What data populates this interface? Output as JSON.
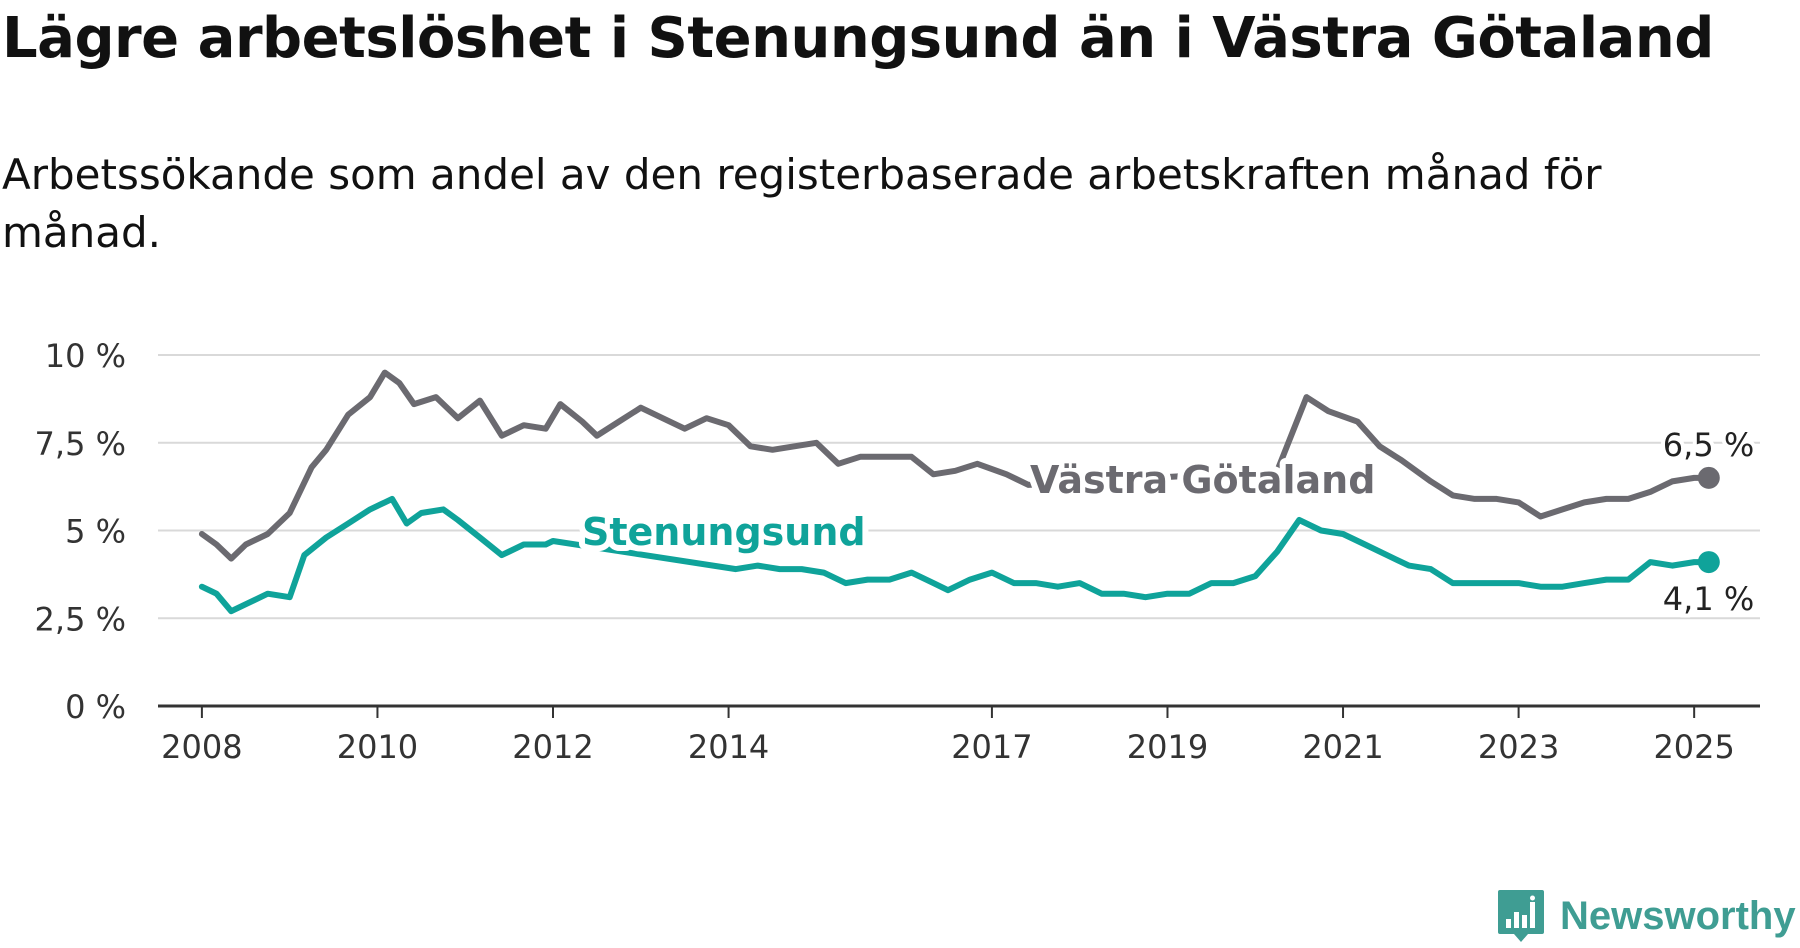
{
  "title": "Lägre arbetslöshet i Stenungsund än i Västra Götaland",
  "subtitle": "Arbetssökande som andel av den registerbaserade arbetskraften månad för månad.",
  "brand": {
    "name": "Newsworthy",
    "color": "#3f9d93"
  },
  "chart_data": {
    "type": "line",
    "y_ticks": [
      "0 %",
      "2,5 %",
      "5 %",
      "7,5 %",
      "10 %"
    ],
    "x_ticks": [
      "2008",
      "2010",
      "2012",
      "2014",
      "2017",
      "2019",
      "2021",
      "2023",
      "2025"
    ],
    "ylim": [
      0,
      10
    ],
    "xlim": [
      "2007-07",
      "2025-10"
    ],
    "grid": true,
    "series": [
      {
        "name": "Västra Götaland",
        "color": "#6b6a70",
        "end_label": "6,5 %",
        "points": [
          [
            "2008-01",
            4.9
          ],
          [
            "2008-03",
            4.6
          ],
          [
            "2008-05",
            4.2
          ],
          [
            "2008-07",
            4.6
          ],
          [
            "2008-10",
            4.9
          ],
          [
            "2009-01",
            5.5
          ],
          [
            "2009-04",
            6.8
          ],
          [
            "2009-06",
            7.3
          ],
          [
            "2009-09",
            8.3
          ],
          [
            "2009-12",
            8.8
          ],
          [
            "2010-02",
            9.5
          ],
          [
            "2010-04",
            9.2
          ],
          [
            "2010-06",
            8.6
          ],
          [
            "2010-09",
            8.8
          ],
          [
            "2010-12",
            8.2
          ],
          [
            "2011-03",
            8.7
          ],
          [
            "2011-06",
            7.7
          ],
          [
            "2011-09",
            8.0
          ],
          [
            "2011-12",
            7.9
          ],
          [
            "2012-02",
            8.6
          ],
          [
            "2012-05",
            8.1
          ],
          [
            "2012-07",
            7.7
          ],
          [
            "2012-10",
            8.1
          ],
          [
            "2013-01",
            8.5
          ],
          [
            "2013-04",
            8.2
          ],
          [
            "2013-07",
            7.9
          ],
          [
            "2013-10",
            8.2
          ],
          [
            "2014-01",
            8.0
          ],
          [
            "2014-04",
            7.4
          ],
          [
            "2014-07",
            7.3
          ],
          [
            "2014-10",
            7.4
          ],
          [
            "2015-01",
            7.5
          ],
          [
            "2015-04",
            6.9
          ],
          [
            "2015-07",
            7.1
          ],
          [
            "2015-10",
            7.1
          ],
          [
            "2016-02",
            7.1
          ],
          [
            "2016-05",
            6.6
          ],
          [
            "2016-08",
            6.7
          ],
          [
            "2016-11",
            6.9
          ],
          [
            "2017-03",
            6.6
          ],
          [
            "2017-06",
            6.3
          ],
          [
            "2020-04",
            6.7
          ],
          [
            "2020-08",
            8.8
          ],
          [
            "2020-11",
            8.4
          ],
          [
            "2021-03",
            8.1
          ],
          [
            "2021-06",
            7.4
          ],
          [
            "2021-09",
            7.0
          ],
          [
            "2022-01",
            6.4
          ],
          [
            "2022-04",
            6.0
          ],
          [
            "2022-07",
            5.9
          ],
          [
            "2022-10",
            5.9
          ],
          [
            "2023-01",
            5.8
          ],
          [
            "2023-04",
            5.4
          ],
          [
            "2023-07",
            5.6
          ],
          [
            "2023-10",
            5.8
          ],
          [
            "2024-01",
            5.9
          ],
          [
            "2024-04",
            5.9
          ],
          [
            "2024-07",
            6.1
          ],
          [
            "2024-10",
            6.4
          ],
          [
            "2025-01",
            6.5
          ],
          [
            "2025-03",
            6.5
          ]
        ]
      },
      {
        "name": "Stenungsund",
        "color": "#0fa39a",
        "end_label": "4,1 %",
        "points": [
          [
            "2008-01",
            3.4
          ],
          [
            "2008-03",
            3.2
          ],
          [
            "2008-05",
            2.7
          ],
          [
            "2008-07",
            2.9
          ],
          [
            "2008-10",
            3.2
          ],
          [
            "2009-01",
            3.1
          ],
          [
            "2009-03",
            4.3
          ],
          [
            "2009-06",
            4.8
          ],
          [
            "2009-09",
            5.2
          ],
          [
            "2009-12",
            5.6
          ],
          [
            "2010-02",
            5.8
          ],
          [
            "2010-03",
            5.9
          ],
          [
            "2010-05",
            5.2
          ],
          [
            "2010-07",
            5.5
          ],
          [
            "2010-10",
            5.6
          ],
          [
            "2010-12",
            5.3
          ],
          [
            "2011-03",
            4.8
          ],
          [
            "2011-06",
            4.3
          ],
          [
            "2011-09",
            4.6
          ],
          [
            "2011-12",
            4.6
          ],
          [
            "2012-01",
            4.7
          ],
          [
            "2014-02",
            3.9
          ],
          [
            "2014-05",
            4.0
          ],
          [
            "2014-08",
            3.9
          ],
          [
            "2014-11",
            3.9
          ],
          [
            "2015-02",
            3.8
          ],
          [
            "2015-05",
            3.5
          ],
          [
            "2015-08",
            3.6
          ],
          [
            "2015-11",
            3.6
          ],
          [
            "2016-02",
            3.8
          ],
          [
            "2016-05",
            3.5
          ],
          [
            "2016-07",
            3.3
          ],
          [
            "2016-10",
            3.6
          ],
          [
            "2017-01",
            3.8
          ],
          [
            "2017-04",
            3.5
          ],
          [
            "2017-07",
            3.5
          ],
          [
            "2017-10",
            3.4
          ],
          [
            "2018-01",
            3.5
          ],
          [
            "2018-04",
            3.2
          ],
          [
            "2018-07",
            3.2
          ],
          [
            "2018-10",
            3.1
          ],
          [
            "2019-01",
            3.2
          ],
          [
            "2019-04",
            3.2
          ],
          [
            "2019-07",
            3.5
          ],
          [
            "2019-10",
            3.5
          ],
          [
            "2020-01",
            3.7
          ],
          [
            "2020-04",
            4.4
          ],
          [
            "2020-07",
            5.3
          ],
          [
            "2020-10",
            5.0
          ],
          [
            "2021-01",
            4.9
          ],
          [
            "2021-04",
            4.6
          ],
          [
            "2021-07",
            4.3
          ],
          [
            "2021-10",
            4.0
          ],
          [
            "2022-01",
            3.9
          ],
          [
            "2022-04",
            3.5
          ],
          [
            "2022-07",
            3.5
          ],
          [
            "2022-10",
            3.5
          ],
          [
            "2023-01",
            3.5
          ],
          [
            "2023-04",
            3.4
          ],
          [
            "2023-07",
            3.4
          ],
          [
            "2023-10",
            3.5
          ],
          [
            "2024-01",
            3.6
          ],
          [
            "2024-04",
            3.6
          ],
          [
            "2024-07",
            4.1
          ],
          [
            "2024-10",
            4.0
          ],
          [
            "2025-01",
            4.1
          ],
          [
            "2025-03",
            4.1
          ]
        ]
      }
    ]
  }
}
